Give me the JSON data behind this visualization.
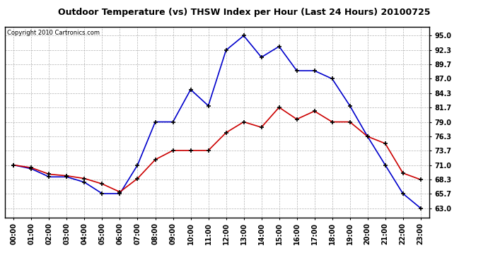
{
  "title": "Outdoor Temperature (vs) THSW Index per Hour (Last 24 Hours) 20100725",
  "copyright": "Copyright 2010 Cartronics.com",
  "hours": [
    "00:00",
    "01:00",
    "02:00",
    "03:00",
    "04:00",
    "05:00",
    "06:00",
    "07:00",
    "08:00",
    "09:00",
    "10:00",
    "11:00",
    "12:00",
    "13:00",
    "14:00",
    "15:00",
    "16:00",
    "17:00",
    "18:00",
    "19:00",
    "20:00",
    "21:00",
    "22:00",
    "23:00"
  ],
  "temp": [
    71.0,
    70.5,
    69.3,
    69.0,
    68.5,
    67.5,
    66.0,
    68.5,
    72.0,
    73.7,
    73.7,
    73.7,
    77.0,
    79.0,
    78.0,
    81.7,
    79.5,
    81.0,
    79.0,
    79.0,
    76.3,
    75.0,
    69.5,
    68.3
  ],
  "thsw": [
    71.0,
    70.3,
    68.8,
    68.8,
    67.8,
    65.7,
    65.7,
    71.0,
    79.0,
    79.0,
    85.0,
    82.0,
    92.3,
    95.0,
    91.0,
    93.0,
    88.5,
    88.5,
    87.0,
    82.0,
    76.3,
    71.0,
    65.7,
    63.0
  ],
  "ylim_min": 61.3,
  "ylim_max": 96.7,
  "yticks": [
    63.0,
    65.7,
    68.3,
    71.0,
    73.7,
    76.3,
    79.0,
    81.7,
    84.3,
    87.0,
    89.7,
    92.3,
    95.0
  ],
  "temp_color": "#cc0000",
  "thsw_color": "#0000cc",
  "background_color": "#ffffff",
  "outer_background": "#ffffff",
  "grid_color": "#aaaaaa",
  "title_fontsize": 9,
  "copyright_fontsize": 6,
  "tick_fontsize": 7,
  "ytick_fontsize": 7
}
